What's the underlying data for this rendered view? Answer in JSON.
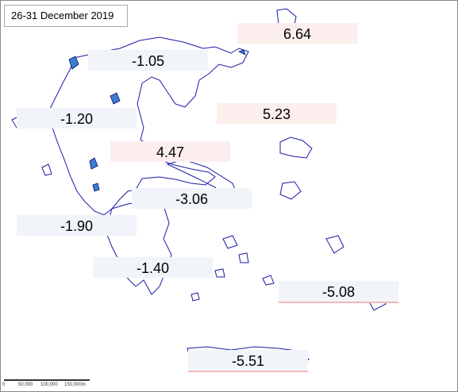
{
  "title": "26-31 December 2019",
  "labels": [
    "6.64",
    "-1.05",
    "5.23",
    "-1.20",
    "4.47",
    "-3.06",
    "-1.90",
    "-1.40",
    "-5.08",
    "-5.51"
  ],
  "scale_bar": {
    "labels": [
      "0",
      "50,000",
      "100,000",
      "150,000m"
    ]
  }
}
